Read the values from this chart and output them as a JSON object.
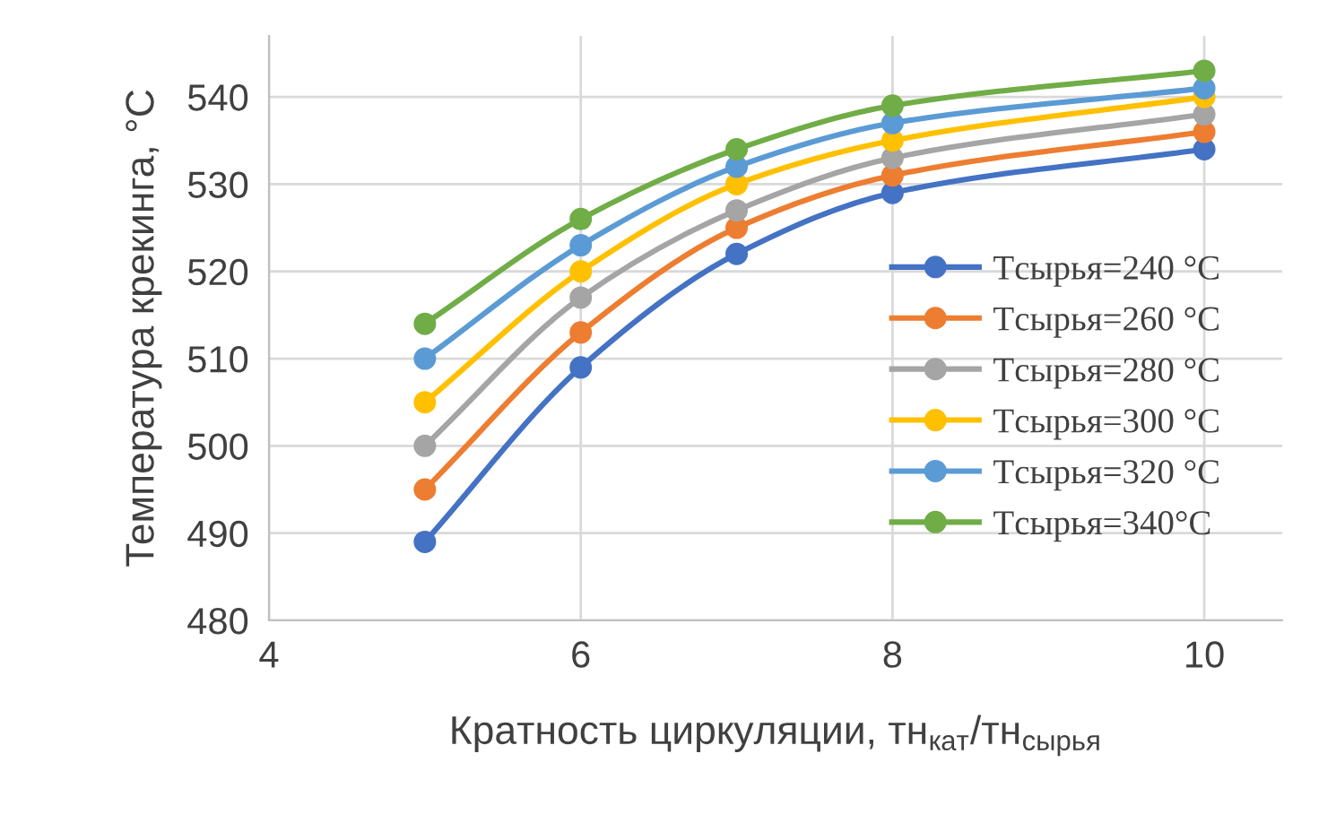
{
  "chart_data": {
    "type": "line",
    "xlabel": "Кратность циркуляции, тн$_{кат}$/тн$_{сырья}$",
    "ylabel": "Температура крекинга, °С",
    "x": [
      5,
      6,
      7,
      8,
      10
    ],
    "xlim": [
      4,
      10.5
    ],
    "xticks": [
      4,
      6,
      8,
      10
    ],
    "ylim": [
      480,
      547
    ],
    "yticks": [
      480,
      490,
      500,
      510,
      520,
      530,
      540
    ],
    "grid": true,
    "legend": "right",
    "marker": "circle",
    "line_style": "solid",
    "series": [
      {
        "name": "Tсырья=240 °C",
        "color": "#4472c4",
        "values": [
          489,
          509,
          522,
          529,
          534
        ]
      },
      {
        "name": "Tсырья=260 °C",
        "color": "#ed7d31",
        "values": [
          495,
          513,
          525,
          531,
          536
        ]
      },
      {
        "name": "Tсырья=280 °C",
        "color": "#a5a5a5",
        "values": [
          500,
          517,
          527,
          533,
          538
        ]
      },
      {
        "name": "Tсырья=300 °C",
        "color": "#ffc000",
        "values": [
          505,
          520,
          530,
          535,
          540
        ]
      },
      {
        "name": "Tсырья=320 °C",
        "color": "#5b9bd5",
        "values": [
          510,
          523,
          532,
          537,
          541
        ]
      },
      {
        "name": "Tсырья=340°C",
        "color": "#70ad47",
        "values": [
          514,
          526,
          534,
          539,
          543
        ]
      }
    ]
  }
}
